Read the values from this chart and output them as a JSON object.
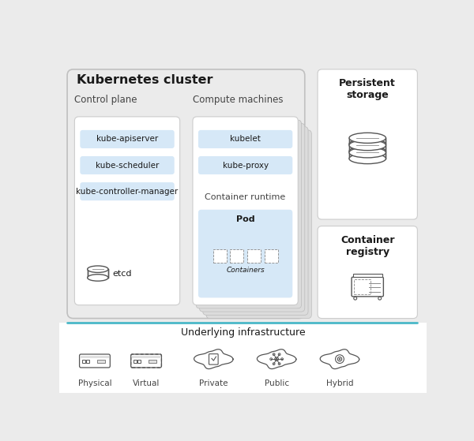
{
  "title": "Kubernetes cluster",
  "bg_color": "#ebebeb",
  "white": "#ffffff",
  "light_blue": "#d6e8f7",
  "dark_text": "#1a1a1a",
  "mid_text": "#444444",
  "gray_icon": "#555555",
  "teal_line": "#4ab8c8",
  "stack_gray": "#dcdcdc",
  "control_plane_label": "Control plane",
  "compute_label": "Compute machines",
  "cp_items": [
    "kube-apiserver",
    "kube-scheduler",
    "kube-controller-manager"
  ],
  "compute_items": [
    "kubelet",
    "kube-proxy"
  ],
  "container_runtime_label": "Container runtime",
  "pod_label": "Pod",
  "containers_label": "Containers",
  "etcd_label": "etcd",
  "persistent_storage_label": "Persistent\nstorage",
  "container_registry_label": "Container\nregistry",
  "underlying_label": "Underlying infrastructure",
  "infra_items": [
    "Physical",
    "Virtual",
    "Private",
    "Public",
    "Hybrid"
  ]
}
